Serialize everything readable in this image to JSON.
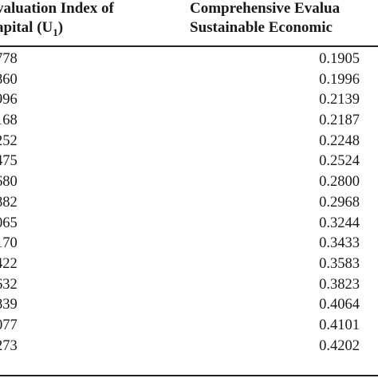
{
  "table": {
    "headers": {
      "col1_line1": "valuation Index of",
      "col1_line2": "apital (U",
      "col1_sub": "1",
      "col1_close": ")",
      "col2_line1": "Comprehensive Evalua",
      "col2_line2": "Sustainable Economic"
    },
    "rows": [
      {
        "col1": "778",
        "col2": "0.1905"
      },
      {
        "col1": "860",
        "col2": "0.1996"
      },
      {
        "col1": "996",
        "col2": "0.2139"
      },
      {
        "col1": "168",
        "col2": "0.2187"
      },
      {
        "col1": "252",
        "col2": "0.2248"
      },
      {
        "col1": "475",
        "col2": "0.2524"
      },
      {
        "col1": "680",
        "col2": "0.2800"
      },
      {
        "col1": "882",
        "col2": "0.2968"
      },
      {
        "col1": "065",
        "col2": "0.3244"
      },
      {
        "col1": "170",
        "col2": "0.3433"
      },
      {
        "col1": "422",
        "col2": "0.3583"
      },
      {
        "col1": "632",
        "col2": "0.3823"
      },
      {
        "col1": "839",
        "col2": "0.4064"
      },
      {
        "col1": "077",
        "col2": "0.4101"
      },
      {
        "col1": "273",
        "col2": "0.4202"
      }
    ]
  }
}
